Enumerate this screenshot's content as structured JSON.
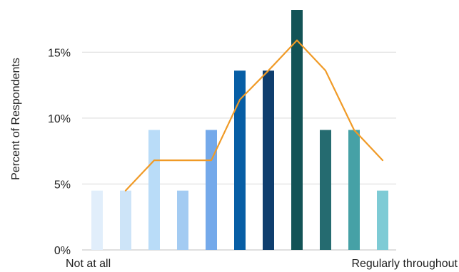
{
  "chart_data": {
    "type": "bar",
    "title": "",
    "xlabel": "",
    "ylabel": "Percent of Respondents",
    "ylim": [
      0,
      18.2
    ],
    "yticks": [
      {
        "value": 0,
        "label": "0%"
      },
      {
        "value": 5,
        "label": "5%"
      },
      {
        "value": 10,
        "label": "10%"
      },
      {
        "value": 15,
        "label": "15%"
      }
    ],
    "x_end_labels": {
      "left": "Not at all",
      "right": "Regularly throughout"
    },
    "grid": true,
    "legend": "none",
    "bars": {
      "values": [
        4.5,
        4.5,
        9.1,
        4.5,
        9.1,
        13.6,
        13.6,
        18.2,
        9.1,
        9.1,
        4.5
      ],
      "colors": [
        "#e1eefb",
        "#cde4f8",
        "#b9dcf8",
        "#a3cbf2",
        "#74a9ea",
        "#075ea5",
        "#0f3e6e",
        "#135356",
        "#256b70",
        "#46a1a6",
        "#7ecbd5"
      ]
    },
    "trend_line": {
      "color": "#f09a26",
      "points": [
        {
          "x": 2,
          "y": 4.5
        },
        {
          "x": 3,
          "y": 6.8
        },
        {
          "x": 4,
          "y": 6.8
        },
        {
          "x": 5,
          "y": 6.8
        },
        {
          "x": 6,
          "y": 11.4
        },
        {
          "x": 7,
          "y": 13.6
        },
        {
          "x": 8,
          "y": 15.9
        },
        {
          "x": 9,
          "y": 13.6
        },
        {
          "x": 10,
          "y": 9.1
        },
        {
          "x": 11,
          "y": 6.8
        }
      ]
    }
  }
}
